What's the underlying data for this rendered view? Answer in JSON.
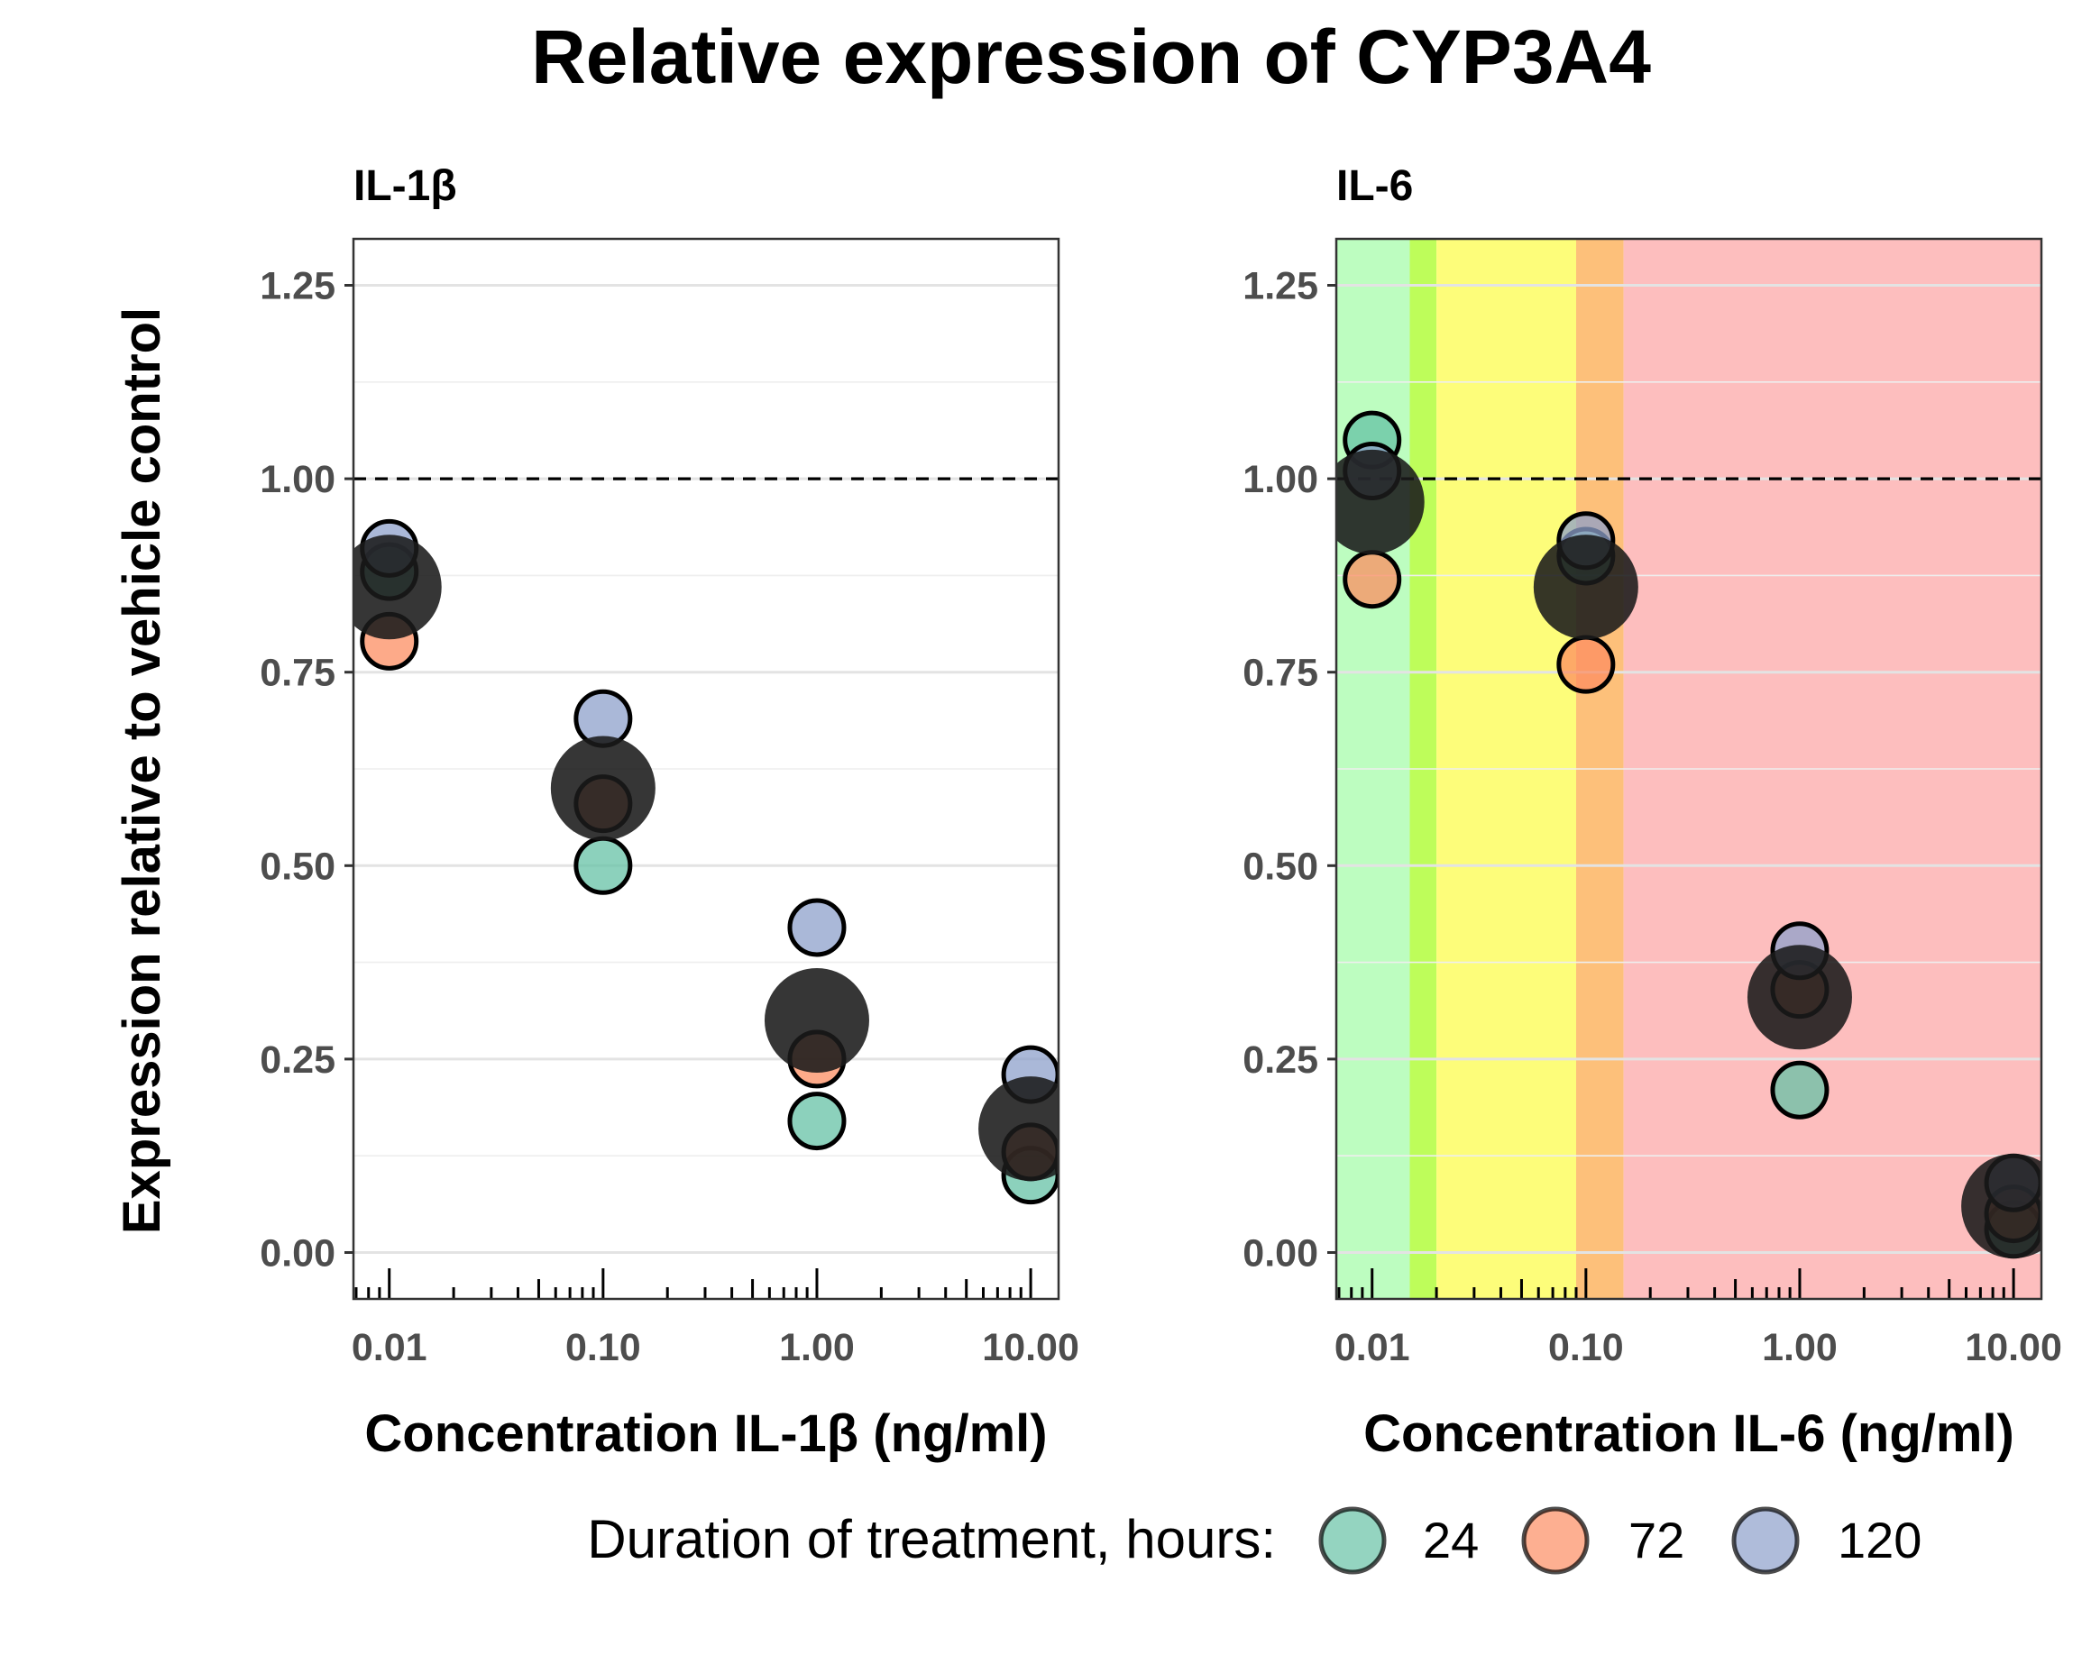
{
  "title": "Relative expression of CYP3A4",
  "y_axis_label": "Expression relative to vehicle control",
  "legend": {
    "title": "Duration of treatment, hours:",
    "items": [
      {
        "label": "24",
        "color": "#66C2A5"
      },
      {
        "label": "72",
        "color": "#FC8D62"
      },
      {
        "label": "120",
        "color": "#8DA0CB"
      }
    ]
  },
  "chart_data": [
    {
      "type": "scatter",
      "panel_title": "IL-1β",
      "xlabel": "Concentration IL-1β (ng/ml)",
      "ylabel": "Expression relative to vehicle control",
      "x_scale": "log10",
      "xlim": [
        0.0068,
        13.5
      ],
      "ylim": [
        -0.06,
        1.31
      ],
      "x_ticks": [
        0.01,
        0.1,
        1,
        10
      ],
      "x_tick_labels": [
        "0.01",
        "0.10",
        "1.00",
        "10.00"
      ],
      "y_ticks": [
        0,
        0.25,
        0.5,
        0.75,
        1.0,
        1.25
      ],
      "y_tick_labels": [
        "0.00",
        "0.25",
        "0.50",
        "0.75",
        "1.00",
        "1.25"
      ],
      "reference_line": 1.0,
      "grid": true,
      "background_bands": [],
      "series": [
        {
          "name": "24",
          "color": "#66C2A5",
          "x": [
            0.01,
            0.1,
            1,
            10
          ],
          "y": [
            0.88,
            0.5,
            0.17,
            0.1
          ]
        },
        {
          "name": "72",
          "color": "#FC8D62",
          "x": [
            0.01,
            0.1,
            1,
            10
          ],
          "y": [
            0.79,
            0.58,
            0.25,
            0.13
          ]
        },
        {
          "name": "120",
          "color": "#8DA0CB",
          "x": [
            0.01,
            0.1,
            1,
            10
          ],
          "y": [
            0.91,
            0.69,
            0.42,
            0.23
          ]
        }
      ],
      "summary": {
        "color": "#1a1a1a",
        "x": [
          0.01,
          0.1,
          1,
          10
        ],
        "y": [
          0.86,
          0.6,
          0.3,
          0.16
        ]
      }
    },
    {
      "type": "scatter",
      "panel_title": "IL-6",
      "xlabel": "Concentration IL-6 (ng/ml)",
      "ylabel": "Expression relative to vehicle control",
      "x_scale": "log10",
      "xlim": [
        0.0068,
        13.5
      ],
      "ylim": [
        -0.06,
        1.31
      ],
      "x_ticks": [
        0.01,
        0.1,
        1,
        10
      ],
      "x_tick_labels": [
        "0.01",
        "0.10",
        "1.00",
        "10.00"
      ],
      "y_ticks": [
        0,
        0.25,
        0.5,
        0.75,
        1.0,
        1.25
      ],
      "y_tick_labels": [
        "0.00",
        "0.25",
        "0.50",
        "0.75",
        "1.00",
        "1.25"
      ],
      "reference_line": 1.0,
      "grid": true,
      "background_bands": [
        {
          "from": 0.0068,
          "to": 0.015,
          "color": "#BDFDC0"
        },
        {
          "from": 0.015,
          "to": 0.02,
          "color": "#BEFD5A"
        },
        {
          "from": 0.02,
          "to": 0.09,
          "color": "#FDFD7A"
        },
        {
          "from": 0.09,
          "to": 0.15,
          "color": "#FDC07A"
        },
        {
          "from": 0.15,
          "to": 13.5,
          "color": "#FDBEBE"
        }
      ],
      "series": [
        {
          "name": "24",
          "color": "#66C2A5",
          "x": [
            0.01,
            0.1,
            1,
            10
          ],
          "y": [
            1.05,
            0.9,
            0.21,
            0.03
          ]
        },
        {
          "name": "72",
          "color": "#FC8D62",
          "x": [
            0.01,
            0.1,
            1,
            10
          ],
          "y": [
            0.87,
            0.76,
            0.34,
            0.05
          ]
        },
        {
          "name": "120",
          "color": "#8DA0CB",
          "x": [
            0.01,
            0.1,
            1,
            10
          ],
          "y": [
            1.01,
            0.92,
            0.39,
            0.09
          ]
        }
      ],
      "summary": {
        "color": "#1a1a1a",
        "x": [
          0.01,
          0.1,
          1,
          10
        ],
        "y": [
          0.97,
          0.86,
          0.33,
          0.06
        ]
      }
    }
  ]
}
